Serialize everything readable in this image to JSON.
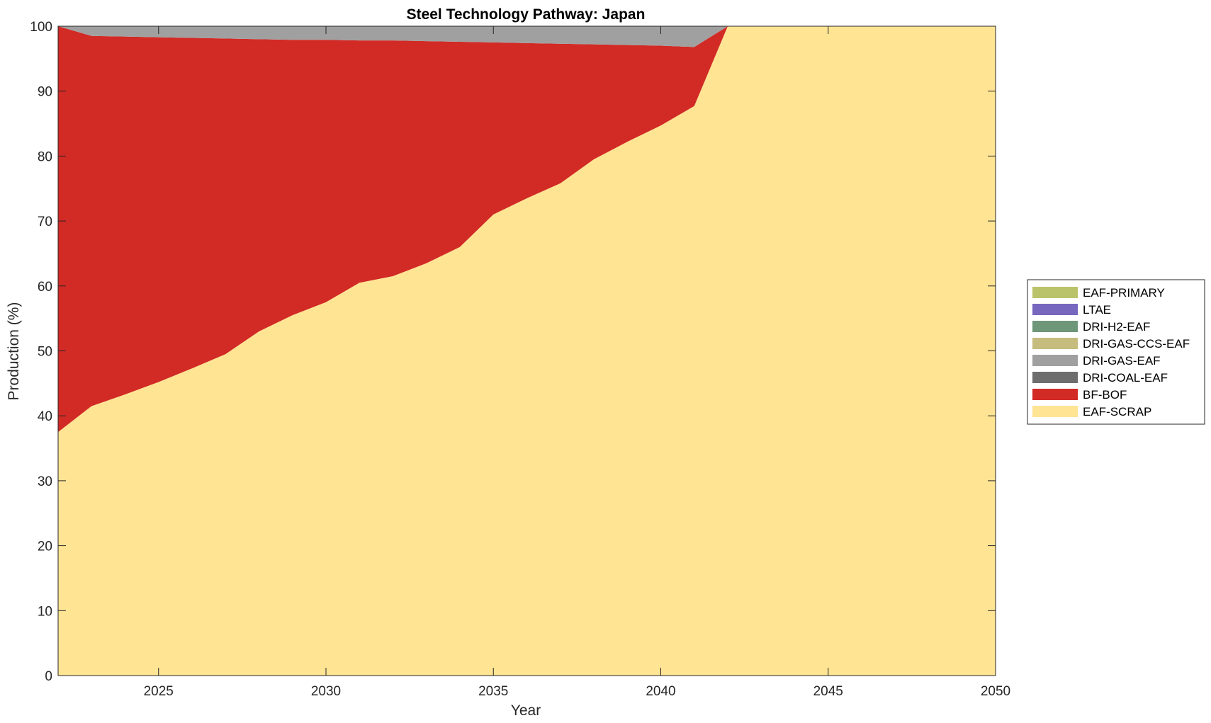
{
  "chart_data": {
    "type": "area",
    "stacked": true,
    "title": "Steel Technology Pathway: Japan",
    "xlabel": "Year",
    "ylabel": "Production (%)",
    "xlim": [
      2022,
      2050
    ],
    "ylim": [
      0,
      100
    ],
    "xticks": [
      2025,
      2030,
      2035,
      2040,
      2045,
      2050
    ],
    "yticks": [
      0,
      10,
      20,
      30,
      40,
      50,
      60,
      70,
      80,
      90,
      100
    ],
    "grid": false,
    "legend_position": "right",
    "x": [
      2022,
      2023,
      2024,
      2025,
      2026,
      2027,
      2028,
      2029,
      2030,
      2031,
      2032,
      2033,
      2034,
      2035,
      2036,
      2037,
      2038,
      2039,
      2040,
      2041,
      2042,
      2043,
      2044,
      2045,
      2046,
      2047,
      2048,
      2049,
      2050
    ],
    "series": [
      {
        "name": "EAF-SCRAP",
        "color": "#FFE494",
        "values": [
          37.5,
          41.5,
          43.3,
          45.2,
          47.3,
          49.5,
          53.0,
          55.5,
          57.5,
          60.5,
          61.5,
          63.5,
          66.0,
          71.0,
          73.5,
          75.8,
          79.5,
          82.2,
          84.7,
          87.7,
          100,
          100,
          100,
          100,
          100,
          100,
          100,
          100,
          100
        ]
      },
      {
        "name": "BF-BOF",
        "color": "#D22A25",
        "values": [
          62.5,
          57.0,
          55.1,
          53.1,
          50.9,
          48.6,
          45.0,
          42.4,
          40.4,
          37.3,
          36.3,
          34.2,
          31.6,
          26.5,
          23.9,
          21.5,
          17.7,
          14.9,
          12.3,
          9.1,
          0,
          0,
          0,
          0,
          0,
          0,
          0,
          0,
          0
        ]
      },
      {
        "name": "DRI-COAL-EAF",
        "color": "#6E6E6E",
        "values": [
          0,
          0,
          0,
          0,
          0,
          0,
          0,
          0,
          0,
          0,
          0,
          0,
          0,
          0,
          0,
          0,
          0,
          0,
          0,
          0,
          0,
          0,
          0,
          0,
          0,
          0,
          0,
          0,
          0
        ]
      },
      {
        "name": "DRI-GAS-EAF",
        "color": "#A0A0A0",
        "values": [
          0,
          1.5,
          1.6,
          1.7,
          1.8,
          1.9,
          2.0,
          2.1,
          2.1,
          2.2,
          2.2,
          2.3,
          2.4,
          2.5,
          2.6,
          2.7,
          2.8,
          2.9,
          3.0,
          3.2,
          0,
          0,
          0,
          0,
          0,
          0,
          0,
          0,
          0
        ]
      },
      {
        "name": "DRI-GAS-CCS-EAF",
        "color": "#C5BC7E",
        "values": [
          0,
          0,
          0,
          0,
          0,
          0,
          0,
          0,
          0,
          0,
          0,
          0,
          0,
          0,
          0,
          0,
          0,
          0,
          0,
          0,
          0,
          0,
          0,
          0,
          0,
          0,
          0,
          0,
          0
        ]
      },
      {
        "name": "DRI-H2-EAF",
        "color": "#6E977A",
        "values": [
          0,
          0,
          0,
          0,
          0,
          0,
          0,
          0,
          0,
          0,
          0,
          0,
          0,
          0,
          0,
          0,
          0,
          0,
          0,
          0,
          0,
          0,
          0,
          0,
          0,
          0,
          0,
          0,
          0
        ]
      },
      {
        "name": "LTAE",
        "color": "#7767BF",
        "values": [
          0,
          0,
          0,
          0,
          0,
          0,
          0,
          0,
          0,
          0,
          0,
          0,
          0,
          0,
          0,
          0,
          0,
          0,
          0,
          0,
          0,
          0,
          0,
          0,
          0,
          0,
          0,
          0,
          0
        ]
      },
      {
        "name": "EAF-PRIMARY",
        "color": "#BBC36A",
        "values": [
          0,
          0,
          0,
          0,
          0,
          0,
          0,
          0,
          0,
          0,
          0,
          0,
          0,
          0,
          0,
          0,
          0,
          0,
          0,
          0,
          0,
          0,
          0,
          0,
          0,
          0,
          0,
          0,
          0
        ]
      }
    ],
    "legend_order": [
      "EAF-PRIMARY",
      "LTAE",
      "DRI-H2-EAF",
      "DRI-GAS-CCS-EAF",
      "DRI-GAS-EAF",
      "DRI-COAL-EAF",
      "BF-BOF",
      "EAF-SCRAP"
    ]
  }
}
